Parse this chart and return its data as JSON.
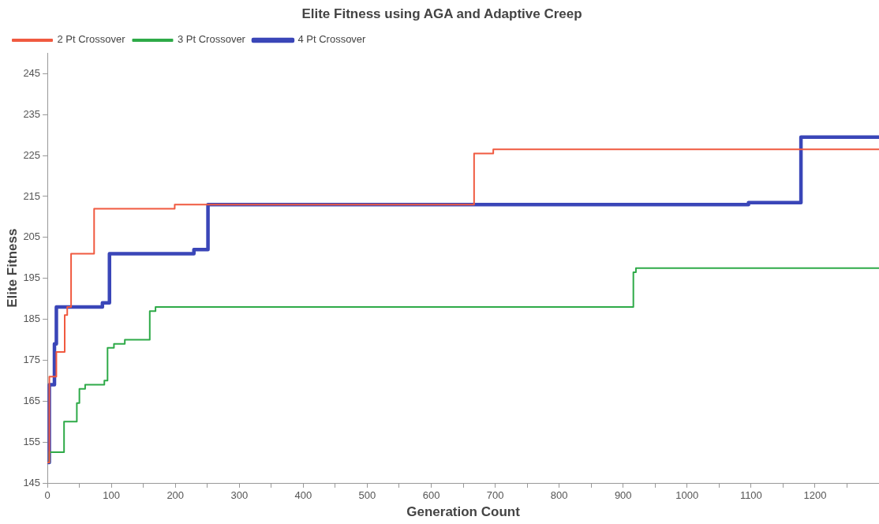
{
  "chart_data": {
    "type": "step",
    "title": "Elite Fitness using AGA and Adaptive Creep",
    "xlabel": "Generation Count",
    "ylabel": "Elite Fitness",
    "xlim": [
      0,
      1300
    ],
    "ylim": [
      145,
      250
    ],
    "xticks": [
      0,
      {
        "value": 50,
        "label": null
      },
      100,
      {
        "value": 150,
        "label": null
      },
      200,
      {
        "value": 250,
        "label": null
      },
      300,
      {
        "value": 350,
        "label": null
      },
      400,
      {
        "value": 450,
        "label": null
      },
      500,
      {
        "value": 550,
        "label": null
      },
      600,
      {
        "value": 650,
        "label": null
      },
      700,
      {
        "value": 750,
        "label": null
      },
      800,
      {
        "value": 850,
        "label": null
      },
      900,
      {
        "value": 950,
        "label": null
      },
      1000,
      {
        "value": 1050,
        "label": null
      },
      1100,
      {
        "value": 1150,
        "label": null
      },
      1200,
      {
        "value": 1250,
        "label": null
      }
    ],
    "yticks": [
      145,
      155,
      165,
      175,
      185,
      195,
      205,
      215,
      225,
      235,
      245
    ],
    "grid": false,
    "legend": "top left",
    "marker": "none",
    "line_style": "solid",
    "series": [
      {
        "name": "2 Pt Crossover",
        "color": "#f05a40",
        "x": [
          0,
          3,
          14,
          27,
          31,
          37,
          73,
          199,
          667,
          697,
          1300
        ],
        "values": [
          150,
          171,
          177,
          186,
          188,
          201,
          212,
          213,
          225.5,
          226.5,
          226.5
        ]
      },
      {
        "name": "3 Pt Crossover",
        "color": "#2eaa48",
        "x": [
          0,
          3,
          26,
          46,
          50,
          59,
          89,
          94,
          104,
          121,
          160,
          169,
          916,
          920,
          1300
        ],
        "values": [
          150,
          152.5,
          160,
          164.5,
          168,
          169,
          170,
          178,
          179,
          180,
          187,
          188,
          196.5,
          197.5,
          197.5
        ]
      },
      {
        "name": "4 Pt Crossover",
        "color": "#3a46b8",
        "x": [
          0,
          3,
          11,
          14,
          86,
          97,
          229,
          251,
          1096,
          1178,
          1300
        ],
        "values": [
          150,
          169,
          179,
          188,
          189,
          201,
          202,
          213,
          213.5,
          229.5,
          229.5
        ]
      }
    ]
  }
}
